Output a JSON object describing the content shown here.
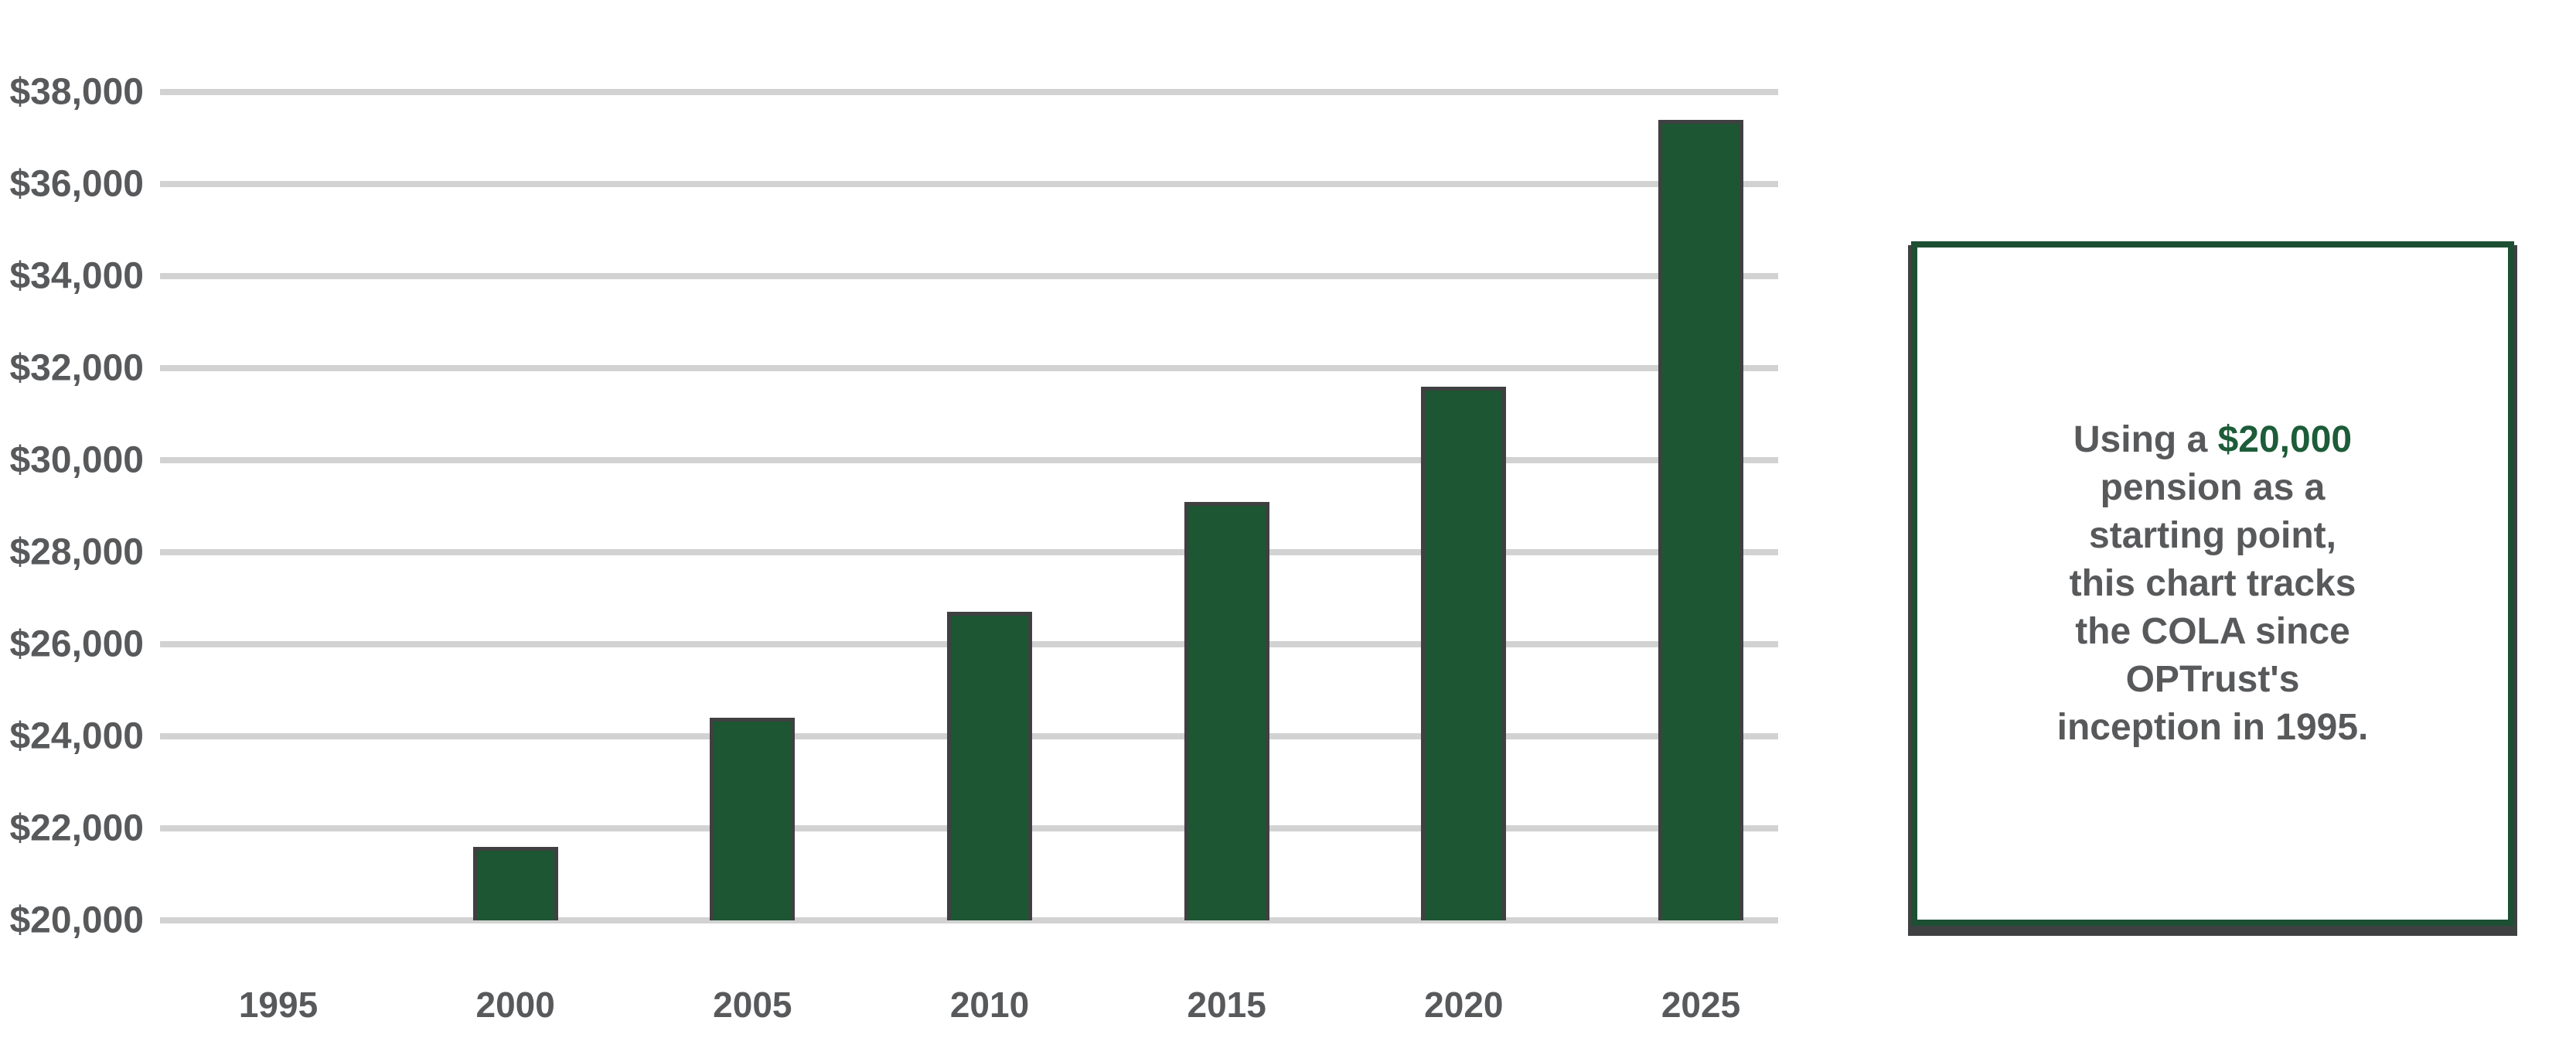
{
  "chart_data": {
    "type": "bar",
    "categories": [
      "1995",
      "2000",
      "2005",
      "2010",
      "2015",
      "2020",
      "2025"
    ],
    "values": [
      20000,
      21600,
      24400,
      26700,
      29100,
      31600,
      37400
    ],
    "ylim": [
      20000,
      38000
    ],
    "ytick_step": 2000,
    "ytick_labels": [
      "$38,000",
      "$36,000",
      "$34,000",
      "$32,000",
      "$30,000",
      "$28,000",
      "$26,000",
      "$24,000",
      "$22,000",
      "$20,000"
    ],
    "grid": true,
    "legend": "none",
    "title": "",
    "xlabel": "",
    "ylabel": ""
  },
  "callout": {
    "line1": {
      "normal": "Using a ",
      "highlight": "$20,000"
    },
    "line2": "pension as a",
    "line3": "starting point,",
    "line4": "this chart tracks",
    "line5": "the COLA since",
    "line6": "OPTrust's",
    "line7": "inception in 1995."
  },
  "colors": {
    "bar_fill": "#1d5632",
    "bar_outline": "#3f4041",
    "gridline": "#d2d2d2",
    "axis_text": "#58595b",
    "callout_border": "#1d4f33",
    "callout_text": "#58595b",
    "callout_highlight": "#1d5c38",
    "callout_shadow": "#3f4041",
    "background": "#ffffff"
  }
}
